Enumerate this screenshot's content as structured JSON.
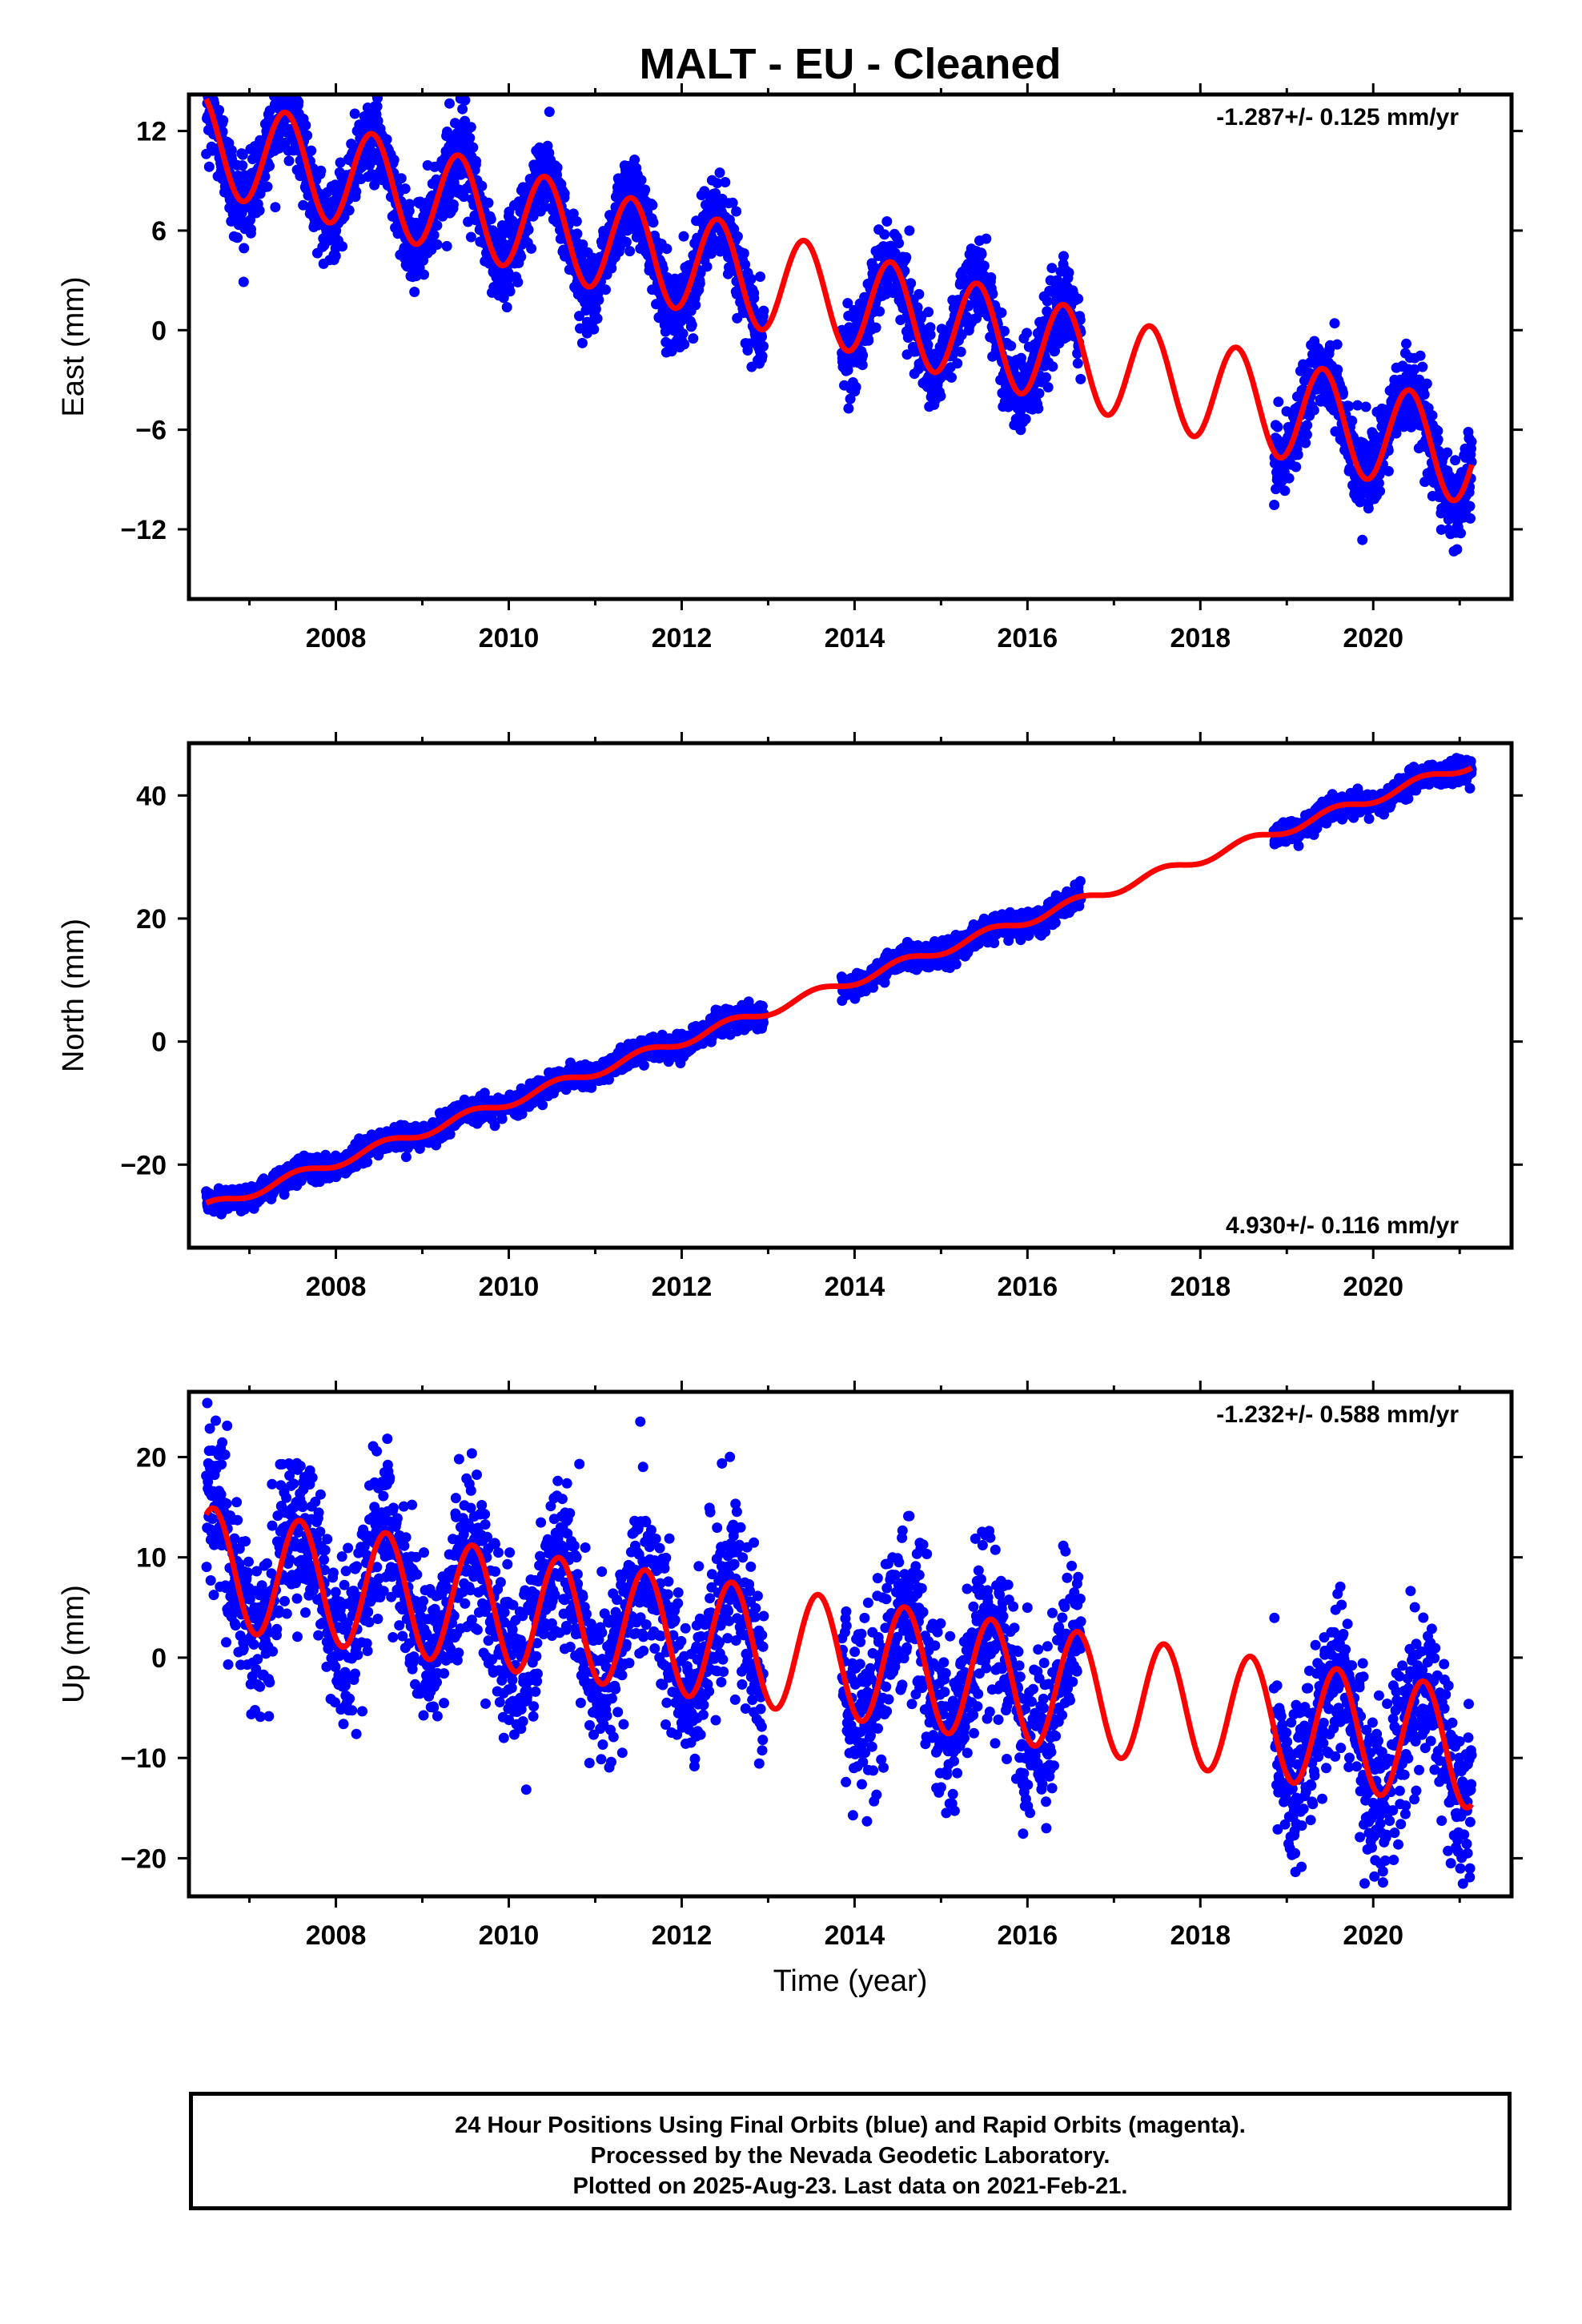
{
  "title": "MALT  - EU - Cleaned",
  "xlabel": "Time (year)",
  "colors": {
    "points": "#0000ff",
    "model": "#ff0000",
    "frame": "#000000"
  },
  "footer": {
    "line1": "24 Hour Positions Using Final Orbits (blue) and Rapid Orbits (magenta).",
    "line2": "Processed by the Nevada Geodetic Laboratory.",
    "line3": "Plotted on 2025-Aug-23. Last data on 2021-Feb-21."
  },
  "chart_data": [
    {
      "type": "scatter",
      "ylabel": "East (mm)",
      "rate_label": "-1.287+/- 0.125 mm/yr",
      "xlim": [
        2006.3,
        2021.6
      ],
      "ylim": [
        -16.2,
        14.2
      ],
      "x_ticks": [
        2008,
        2010,
        2012,
        2014,
        2016,
        2018,
        2020
      ],
      "x_tick_labels": [
        "2008",
        "2010",
        "2012",
        "2014",
        "2016",
        "2018",
        "2020"
      ],
      "y_ticks": [
        12,
        6,
        0,
        -6,
        -12
      ],
      "y_tick_labels": [
        "12",
        "6",
        "0",
        "−6",
        "−12"
      ],
      "grid": false,
      "model": {
        "start": 2006.5,
        "offset": 11.3,
        "rate": -1.287,
        "amplitude": 3.0,
        "peak_phase": 0.42
      },
      "data_segments": [
        [
          2006.5,
          2012.95
        ],
        [
          2013.85,
          2016.62
        ],
        [
          2018.85,
          2021.14
        ]
      ],
      "noise_sd": 1.2,
      "points_per_year": 300
    },
    {
      "type": "scatter",
      "ylabel": "North (mm)",
      "rate_label": "4.930+/- 0.116 mm/yr",
      "xlim": [
        2006.3,
        2021.6
      ],
      "ylim": [
        -33.5,
        48.5
      ],
      "x_ticks": [
        2008,
        2010,
        2012,
        2014,
        2016,
        2018,
        2020
      ],
      "x_tick_labels": [
        "2008",
        "2010",
        "2012",
        "2014",
        "2016",
        "2018",
        "2020"
      ],
      "y_ticks": [
        40,
        20,
        0,
        -20
      ],
      "y_tick_labels": [
        "40",
        "20",
        "0",
        "−20"
      ],
      "grid": false,
      "model": {
        "start": 2006.5,
        "offset": -27.0,
        "rate": 4.93,
        "amplitude": 0.8,
        "peak_phase": 0.55
      },
      "data_segments": [
        [
          2006.5,
          2012.95
        ],
        [
          2013.85,
          2016.62
        ],
        [
          2018.85,
          2021.14
        ]
      ],
      "noise_sd": 0.9,
      "points_per_year": 300
    },
    {
      "type": "scatter",
      "ylabel": "Up (mm)",
      "rate_label": "-1.232+/- 0.588 mm/yr",
      "xlim": [
        2006.3,
        2021.6
      ],
      "ylim": [
        -23.8,
        26.5
      ],
      "x_ticks": [
        2008,
        2010,
        2012,
        2014,
        2016,
        2018,
        2020
      ],
      "x_tick_labels": [
        "2008",
        "2010",
        "2012",
        "2014",
        "2016",
        "2018",
        "2020"
      ],
      "y_ticks": [
        20,
        10,
        0,
        -10,
        -20
      ],
      "y_tick_labels": [
        "20",
        "10",
        "0",
        "−10",
        "−20"
      ],
      "grid": false,
      "model": {
        "start": 2006.5,
        "offset": 9.0,
        "rate": -1.232,
        "amplitude": 6.0,
        "peak_phase": 0.58
      },
      "data_segments": [
        [
          2006.5,
          2012.95
        ],
        [
          2013.85,
          2016.62
        ],
        [
          2018.85,
          2021.14
        ]
      ],
      "noise_sd": 4.0,
      "points_per_year": 260
    }
  ]
}
